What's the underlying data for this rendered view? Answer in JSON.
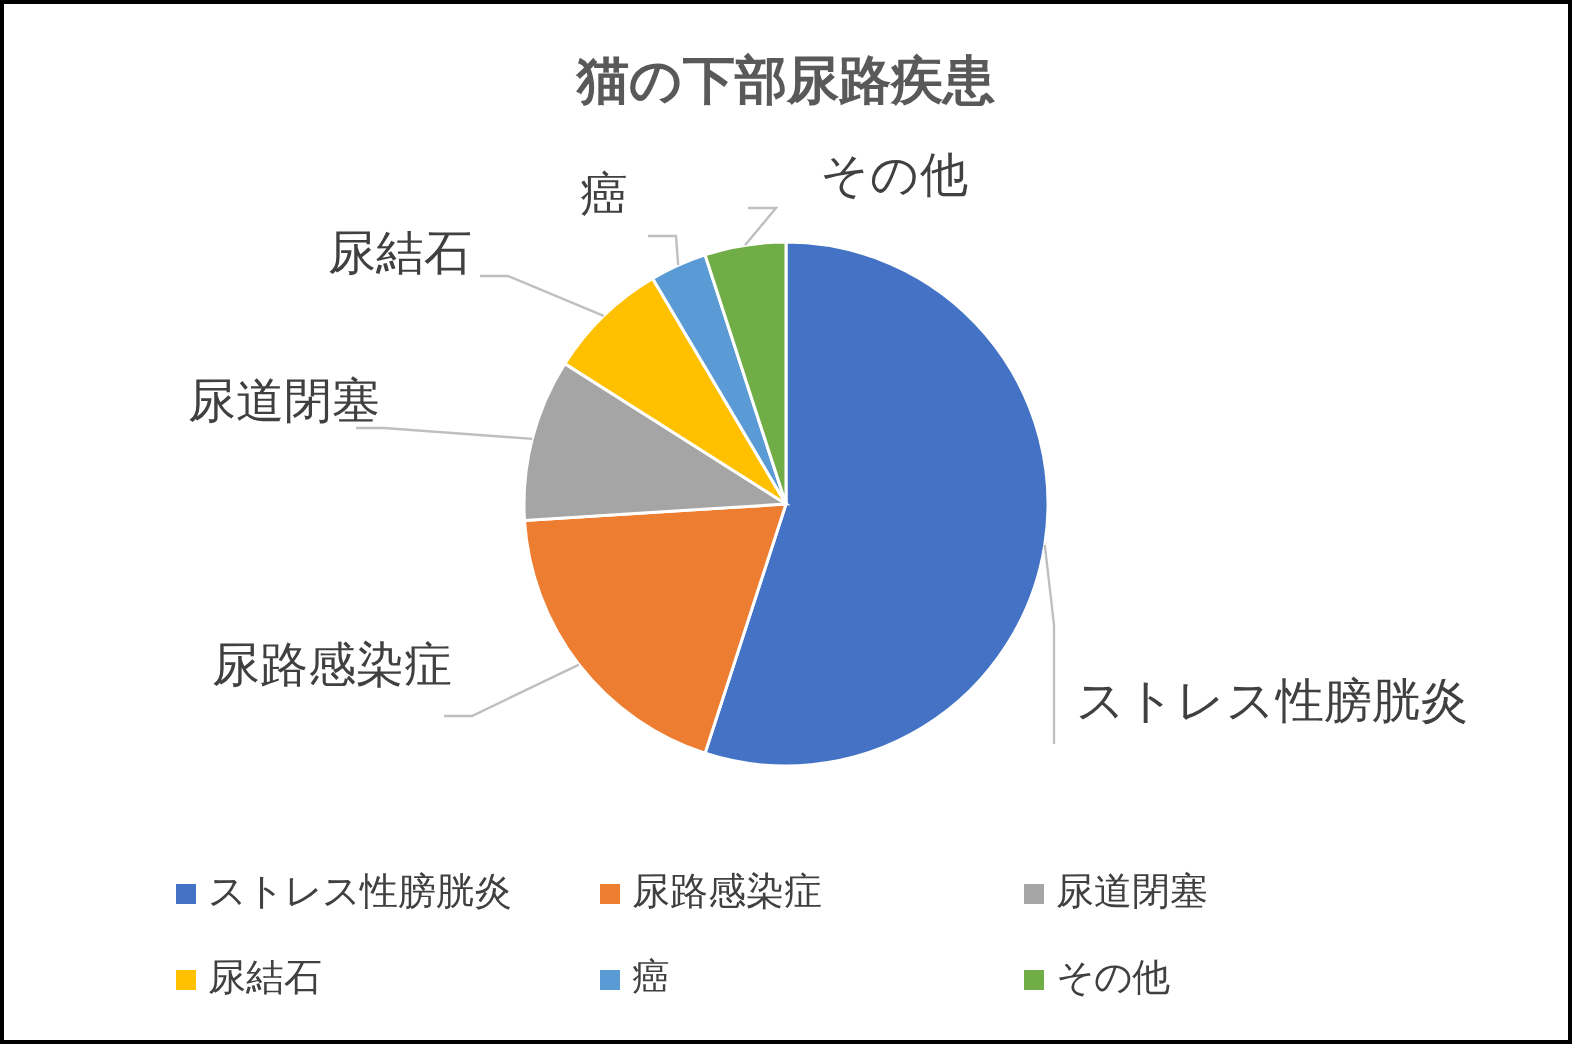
{
  "chart_data": {
    "type": "pie",
    "title": "猫の下部尿路疾患",
    "categories": [
      "ストレス性膀胱炎",
      "尿路感染症",
      "尿道閉塞",
      "尿結石",
      "癌",
      "その他"
    ],
    "values": [
      55,
      19,
      10,
      7.5,
      3.5,
      5
    ],
    "colors": [
      "#4472c4",
      "#ed7d31",
      "#a5a5a5",
      "#ffc000",
      "#5b9bd5",
      "#70ad47"
    ],
    "legend": "bottom"
  }
}
